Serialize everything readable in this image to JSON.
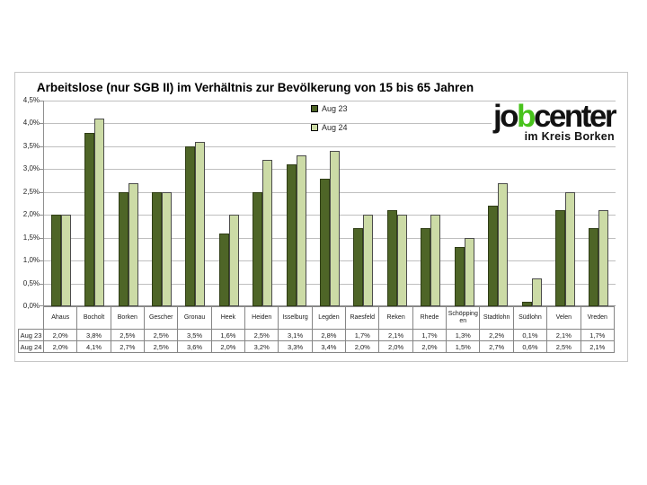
{
  "title": "Arbeitslose (nur SGB II) im Verhältnis zur Bevölkerung von 15 bis 65 Jahren",
  "logo": {
    "part1": "jo",
    "part2": "b",
    "part3": "center",
    "subtitle": "im Kreis Borken",
    "green": "#48c31c"
  },
  "axis": {
    "tick_labels": [
      "4,5%",
      "4,0%",
      "3,5%",
      "3,0%",
      "2,5%",
      "2,0%",
      "1,5%",
      "1,0%",
      "0,5%",
      "0,0%"
    ]
  },
  "chart_data": {
    "type": "bar",
    "title": "Arbeitslose (nur SGB II) im Verhältnis zur Bevölkerung von 15 bis 65 Jahren",
    "categories": [
      "Ahaus",
      "Bocholt",
      "Borken",
      "Gescher",
      "Gronau",
      "Heek",
      "Heiden",
      "Isselburg",
      "Legden",
      "Raesfeld",
      "Reken",
      "Rhede",
      "Schöppingen",
      "Stadtlohn",
      "Südlohn",
      "Velen",
      "Vreden"
    ],
    "series": [
      {
        "name": "Aug 23",
        "color": "#4e6527",
        "values": [
          2.0,
          3.8,
          2.5,
          2.5,
          3.5,
          1.6,
          2.5,
          3.1,
          2.8,
          1.7,
          2.1,
          1.7,
          1.3,
          2.2,
          0.1,
          2.1,
          1.7
        ]
      },
      {
        "name": "Aug 24",
        "color": "#ccdba6",
        "values": [
          2.0,
          4.1,
          2.7,
          2.5,
          3.6,
          2.0,
          3.2,
          3.3,
          3.4,
          2.0,
          2.0,
          2.0,
          1.5,
          2.7,
          0.6,
          2.5,
          2.1
        ]
      }
    ],
    "xlabel": "",
    "ylabel": "",
    "ylim": [
      0,
      4.5
    ],
    "ytick_step": 0.5,
    "grid": true,
    "legend_position": "top-center"
  },
  "table": {
    "row_labels": [
      "Aug 23",
      "Aug 24"
    ],
    "columns": [
      "Ahaus",
      "Bocholt",
      "Borken",
      "Gescher",
      "Gronau",
      "Heek",
      "Heiden",
      "Isselburg",
      "Legden",
      "Raesfeld",
      "Reken",
      "Rhede",
      "Schöppingen",
      "Stadtlohn",
      "Südlohn",
      "Velen",
      "Vreden"
    ],
    "rows": [
      [
        "2,0%",
        "3,8%",
        "2,5%",
        "2,5%",
        "3,5%",
        "1,6%",
        "2,5%",
        "3,1%",
        "2,8%",
        "1,7%",
        "2,1%",
        "1,7%",
        "1,3%",
        "2,2%",
        "0,1%",
        "2,1%",
        "1,7%"
      ],
      [
        "2,0%",
        "4,1%",
        "2,7%",
        "2,5%",
        "3,6%",
        "2,0%",
        "3,2%",
        "3,3%",
        "3,4%",
        "2,0%",
        "2,0%",
        "2,0%",
        "1,5%",
        "2,7%",
        "0,6%",
        "2,5%",
        "2,1%"
      ]
    ]
  }
}
